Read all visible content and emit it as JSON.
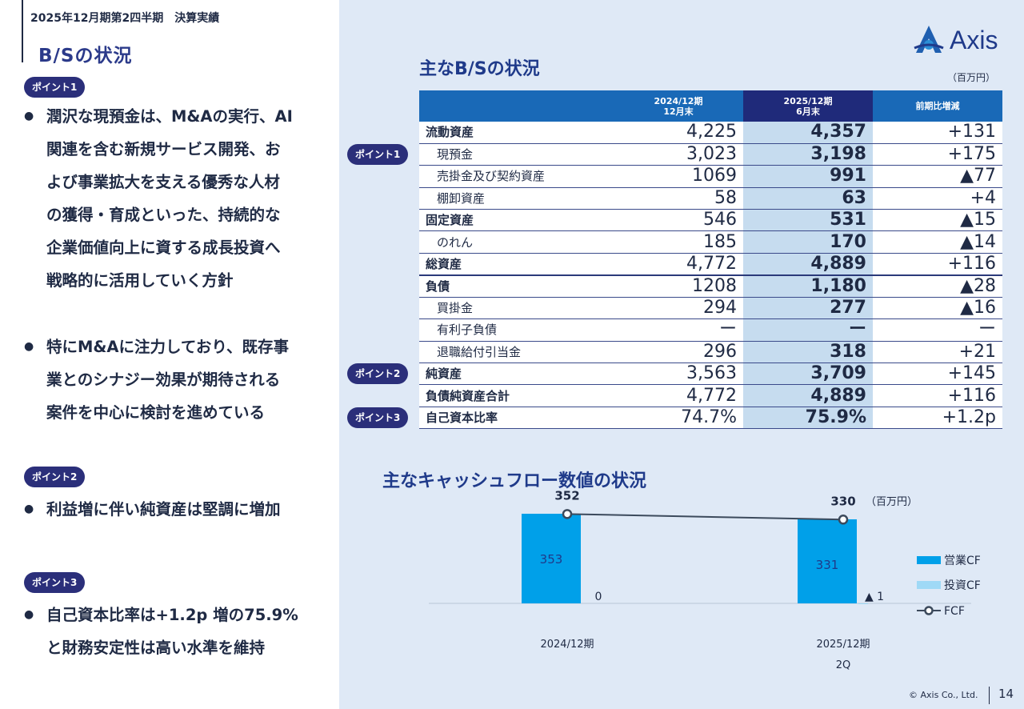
{
  "header": {
    "breadcrumb": "2025年12月期第2四半期　決算実績",
    "section_title": "B/Sの状況"
  },
  "points": [
    {
      "badge": "ポイント1",
      "bullets": [
        "潤沢な現預金は、M&Aの実行、AI\n関連を含む新規サービス開発、お\nよび事業拡大を支える優秀な人材\nの獲得・育成といった、持続的な\n企業価値向上に資する成長投資へ\n戦略的に活用していく方針",
        "特にM&Aに注力しており、既存事\n業とのシナジー効果が期待される\n案件を中心に検討を進めている"
      ]
    },
    {
      "badge": "ポイント2",
      "bullets": [
        "利益増に伴い純資産は堅調に増加"
      ]
    },
    {
      "badge": "ポイント3",
      "bullets": [
        "自己資本比率は+1.2p 増の75.9%\nと財務安定性は高い水準を維持"
      ]
    }
  ],
  "logo": {
    "text": "Axis"
  },
  "bs_section": {
    "title": "主なB/Sの状況",
    "unit": "（百万円）",
    "columns": [
      {
        "line1": "2024/12期",
        "line2": "12月末"
      },
      {
        "line1": "2025/12期",
        "line2": "6月末"
      },
      {
        "line1": "前期比増減",
        "line2": ""
      }
    ],
    "rows": [
      {
        "label": "流動資産",
        "v1": "4,225",
        "v2": "4,357",
        "diff": "+131",
        "bold": true,
        "indent": false,
        "badge": ""
      },
      {
        "label": "現預金",
        "v1": "3,023",
        "v2": "3,198",
        "diff": "+175",
        "bold": false,
        "indent": true,
        "badge": "ポイント1"
      },
      {
        "label": "売掛金及び契約資産",
        "v1": "1069",
        "v2": "991",
        "diff": "▲77",
        "bold": false,
        "indent": true,
        "badge": ""
      },
      {
        "label": "棚卸資産",
        "v1": "58",
        "v2": "63",
        "diff": "+4",
        "bold": false,
        "indent": true,
        "badge": ""
      },
      {
        "label": "固定資産",
        "v1": "546",
        "v2": "531",
        "diff": "▲15",
        "bold": true,
        "indent": false,
        "badge": ""
      },
      {
        "label": "のれん",
        "v1": "185",
        "v2": "170",
        "diff": "▲14",
        "bold": false,
        "indent": true,
        "badge": ""
      },
      {
        "label": "総資産",
        "v1": "4,772",
        "v2": "4,889",
        "diff": "+116",
        "bold": true,
        "indent": false,
        "badge": "",
        "thick": true
      },
      {
        "label": "負債",
        "v1": "1208",
        "v2": "1,180",
        "diff": "▲28",
        "bold": true,
        "indent": false,
        "badge": ""
      },
      {
        "label": "買掛金",
        "v1": "294",
        "v2": "277",
        "diff": "▲16",
        "bold": false,
        "indent": true,
        "badge": ""
      },
      {
        "label": "有利子負債",
        "v1": "ー",
        "v2": "ー",
        "diff": "ー",
        "bold": false,
        "indent": true,
        "badge": ""
      },
      {
        "label": "退職給付引当金",
        "v1": "296",
        "v2": "318",
        "diff": "+21",
        "bold": false,
        "indent": true,
        "badge": ""
      },
      {
        "label": "純資産",
        "v1": "3,563",
        "v2": "3,709",
        "diff": "+145",
        "bold": true,
        "indent": false,
        "badge": "ポイント2"
      },
      {
        "label": "負債純資産合計",
        "v1": "4,772",
        "v2": "4,889",
        "diff": "+116",
        "bold": true,
        "indent": false,
        "badge": ""
      },
      {
        "label": "自己資本比率",
        "v1": "74.7%",
        "v2": "75.9%",
        "diff": "+1.2p",
        "bold": true,
        "indent": false,
        "badge": "ポイント3"
      }
    ]
  },
  "cf_section": {
    "title": "主なキャッシュフロー数値の状況",
    "unit": "（百万円）"
  },
  "chart_data": {
    "type": "bar",
    "categories": [
      "2024/12期",
      "2025/12期\n2Q"
    ],
    "series": [
      {
        "name": "営業CF",
        "kind": "bar",
        "values": [
          353,
          331
        ],
        "labels": [
          "353",
          "331"
        ],
        "color": "#00a0e9"
      },
      {
        "name": "投資CF",
        "kind": "bar",
        "values": [
          0,
          -1
        ],
        "labels": [
          "0",
          "▲ 1"
        ],
        "color": "#9fd9f6"
      },
      {
        "name": "FCF",
        "kind": "line",
        "values": [
          352,
          330
        ],
        "labels": [
          "352",
          "330"
        ],
        "color": "#3c4a5c"
      }
    ],
    "unit": "（百万円）",
    "legend": "right"
  },
  "footer": {
    "copyright": "© Axis Co., Ltd.",
    "page": "14"
  }
}
